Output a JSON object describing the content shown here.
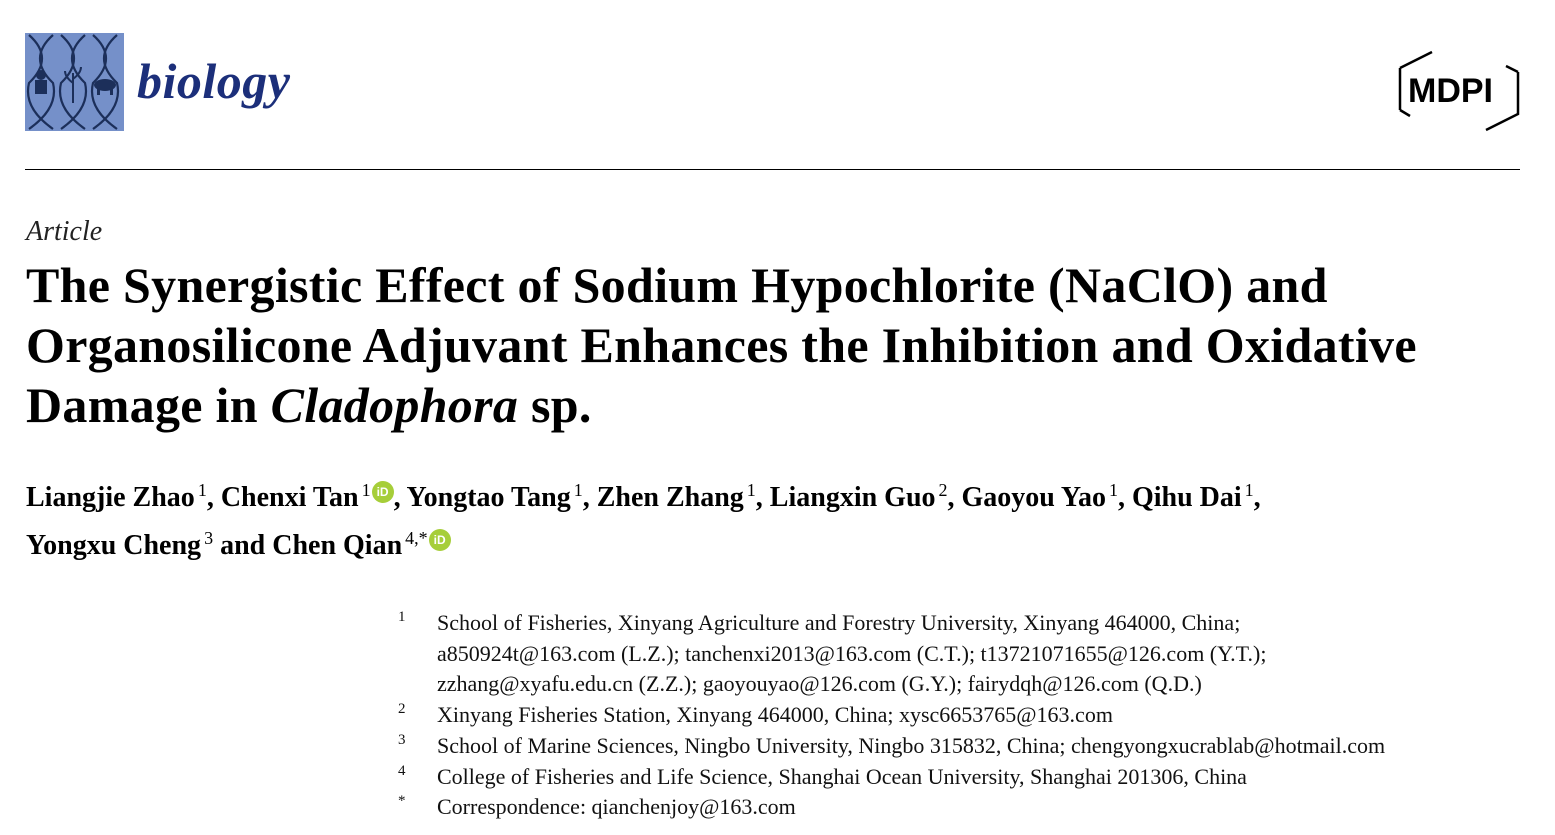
{
  "header": {
    "journal_name": "biology",
    "publisher_logo": "MDPI",
    "colors": {
      "journal_logo_bg": "#7590c9",
      "journal_text": "#1c2f7a",
      "orcid": "#a6ce39"
    }
  },
  "article": {
    "type": "Article",
    "title_part1": "The Synergistic Effect of Sodium Hypochlorite (NaClO) and Organosilicone Adjuvant Enhances the Inhibition and Oxidative Damage in ",
    "title_italic": "Cladophora",
    "title_part2": " sp.",
    "authors": [
      {
        "name": "Liangjie Zhao",
        "sup": "1",
        "orcid": false,
        "sep": ", "
      },
      {
        "name": "Chenxi Tan",
        "sup": "1",
        "orcid": true,
        "sep": ", "
      },
      {
        "name": "Yongtao Tang",
        "sup": "1",
        "orcid": false,
        "sep": ", "
      },
      {
        "name": "Zhen Zhang",
        "sup": "1",
        "orcid": false,
        "sep": ", "
      },
      {
        "name": "Liangxin Guo",
        "sup": "2",
        "orcid": false,
        "sep": ", "
      },
      {
        "name": "Gaoyou Yao",
        "sup": "1",
        "orcid": false,
        "sep": ", "
      },
      {
        "name": "Qihu Dai",
        "sup": "1",
        "orcid": false,
        "sep": ","
      },
      {
        "name": "Yongxu Cheng",
        "sup": "3",
        "orcid": false,
        "sep": " and "
      },
      {
        "name": "Chen Qian",
        "sup": "4,*",
        "orcid": true,
        "sep": ""
      }
    ],
    "affiliations": [
      {
        "num": "1",
        "lines": [
          "School of Fisheries, Xinyang Agriculture and Forestry University, Xinyang 464000, China;",
          "a850924t@163.com (L.Z.); tanchenxi2013@163.com (C.T.); t13721071655@126.com (Y.T.);",
          "zzhang@xyafu.edu.cn (Z.Z.); gaoyouyao@126.com (G.Y.); fairydqh@126.com (Q.D.)"
        ]
      },
      {
        "num": "2",
        "lines": [
          "Xinyang Fisheries Station, Xinyang 464000, China; xysc6653765@163.com"
        ]
      },
      {
        "num": "3",
        "lines": [
          "School of Marine Sciences, Ningbo University, Ningbo 315832, China; chengyongxucrablab@hotmail.com"
        ]
      },
      {
        "num": "4",
        "lines": [
          "College of Fisheries and Life Science, Shanghai Ocean University, Shanghai 201306, China"
        ]
      },
      {
        "num": "*",
        "lines": [
          "Correspondence: qianchenjoy@163.com"
        ]
      }
    ]
  }
}
